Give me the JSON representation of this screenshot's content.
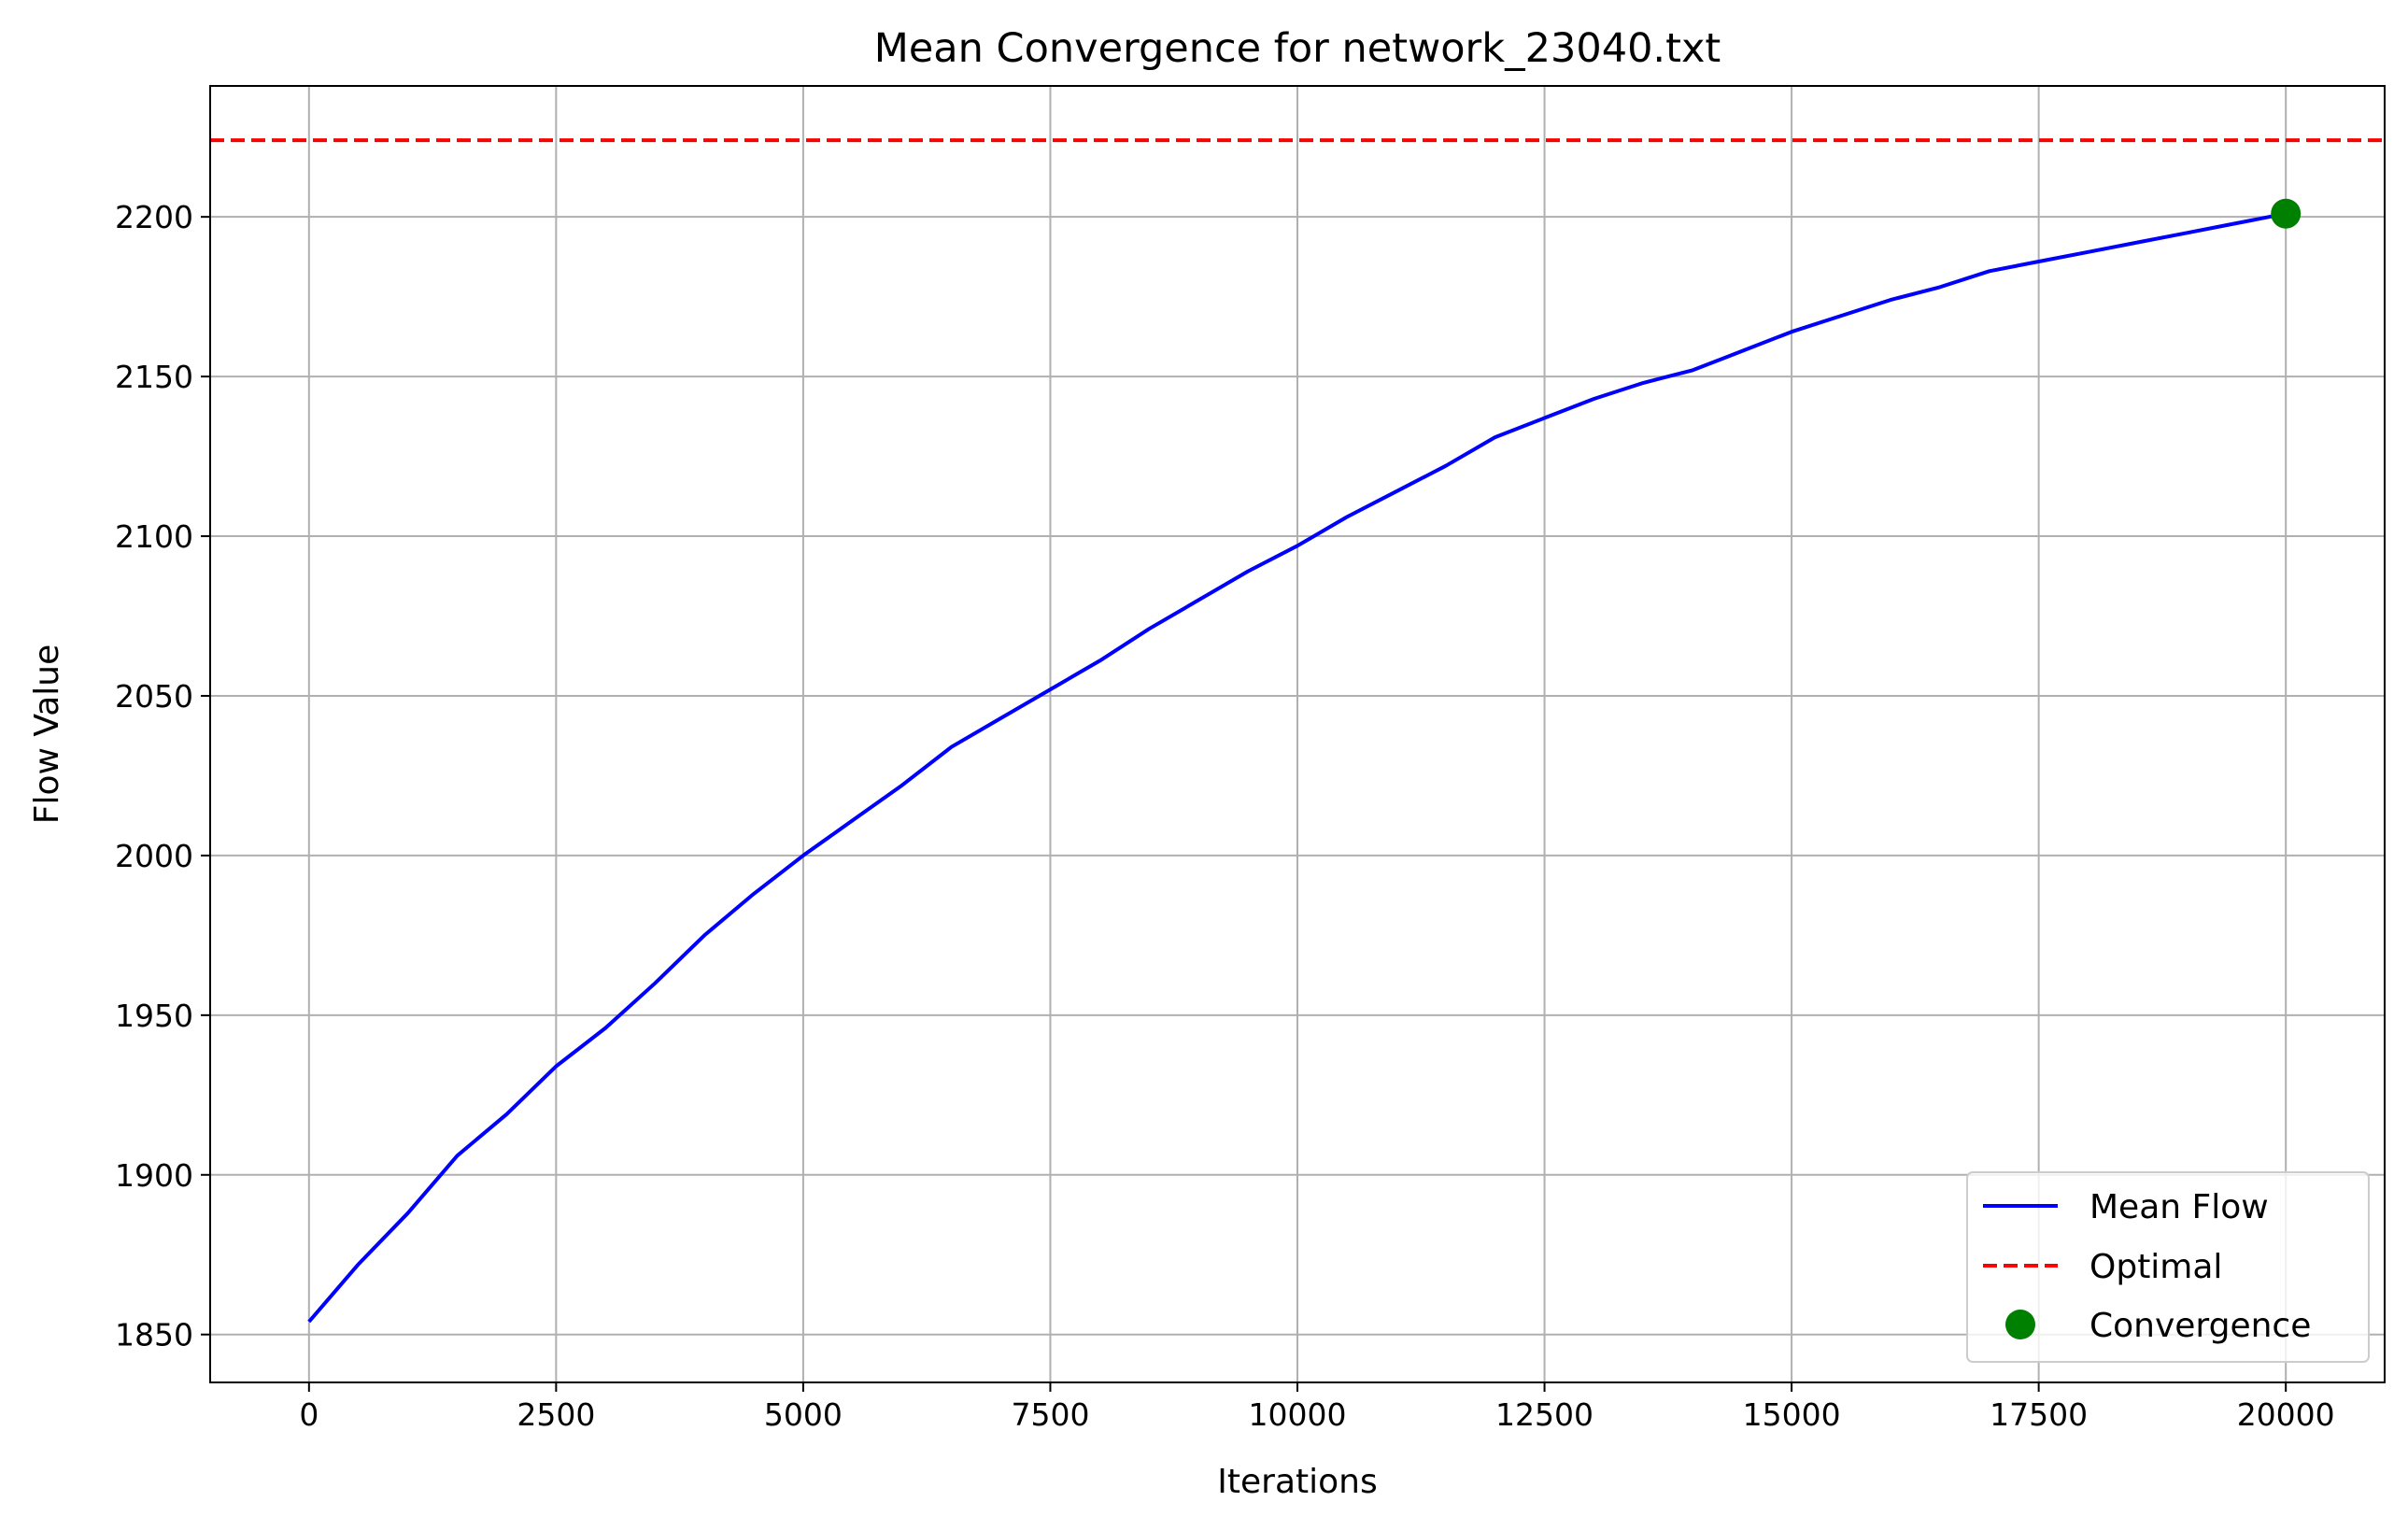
{
  "chart_data": {
    "type": "line",
    "title": "Mean Convergence for network_23040.txt",
    "xlabel": "Iterations",
    "ylabel": "Flow Value",
    "xlim": [
      -1000,
      21000
    ],
    "ylim": [
      1835,
      2241
    ],
    "xticks": [
      0,
      2500,
      5000,
      7500,
      10000,
      12500,
      15000,
      17500,
      20000
    ],
    "yticks": [
      1850,
      1900,
      1950,
      2000,
      2050,
      2100,
      2150,
      2200
    ],
    "grid": true,
    "legend_position": "lower-right",
    "series": [
      {
        "name": "Mean Flow",
        "style": "solid",
        "color": "#0000ff",
        "x": [
          0,
          500,
          1000,
          1500,
          2000,
          2500,
          3000,
          3500,
          4000,
          4500,
          5000,
          5500,
          6000,
          6500,
          7000,
          7500,
          8000,
          8500,
          9000,
          9500,
          10000,
          10500,
          11000,
          11500,
          12000,
          12500,
          13000,
          13500,
          14000,
          14500,
          15000,
          15500,
          16000,
          16500,
          17000,
          17500,
          18000,
          18500,
          19000,
          19500,
          20000
        ],
        "y": [
          1854,
          1872,
          1888,
          1906,
          1919,
          1934,
          1946,
          1960,
          1975,
          1988,
          2000,
          2011,
          2022,
          2034,
          2043,
          2052,
          2061,
          2071,
          2080,
          2089,
          2097,
          2106,
          2114,
          2122,
          2131,
          2137,
          2143,
          2148,
          2152,
          2158,
          2164,
          2169,
          2174,
          2178,
          2183,
          2186,
          2189,
          2192,
          2195,
          2198,
          2201
        ]
      },
      {
        "name": "Optimal",
        "style": "dashed",
        "color": "#ff0000",
        "y_constant": 2224
      },
      {
        "name": "Convergence",
        "style": "marker",
        "color": "#008000",
        "x": [
          20000
        ],
        "y": [
          2201
        ]
      }
    ]
  }
}
